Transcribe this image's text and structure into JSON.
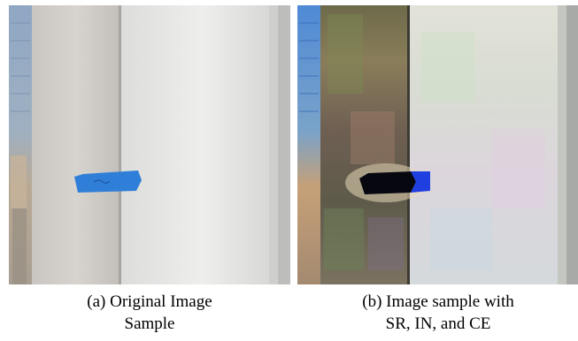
{
  "figure": {
    "panels": [
      {
        "id": "a",
        "caption_line1": "(a) Original Image",
        "caption_line2": "Sample"
      },
      {
        "id": "b",
        "caption_line1": "(b) Image sample with",
        "caption_line2": "SR, IN, and CE"
      }
    ]
  }
}
